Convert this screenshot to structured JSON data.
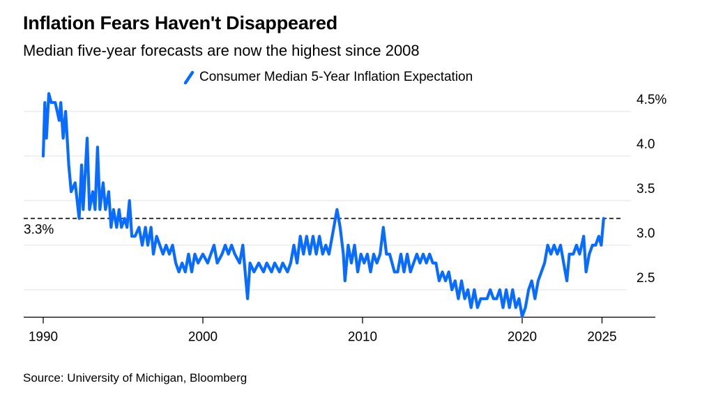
{
  "title": "Inflation Fears Haven't Disappeared",
  "subtitle": "Median five-year forecasts are now the highest since 2008",
  "source": "Source: University of Michigan, Bloomberg",
  "chart_data": {
    "type": "line",
    "title": "Inflation Fears Haven't Disappeared",
    "subtitle": "Median five-year forecasts are now the highest since 2008",
    "xlabel": "",
    "ylabel": "",
    "xlim": [
      1989.2,
      2028.5
    ],
    "ylim": [
      2.2,
      4.7
    ],
    "grid": true,
    "legend": "top-center",
    "y_axis_side": "right",
    "x_ticks": [
      {
        "value": 1990,
        "label": "1990"
      },
      {
        "value": 2000,
        "label": "2000"
      },
      {
        "value": 2010,
        "label": "2010"
      },
      {
        "value": 2020,
        "label": "2020"
      },
      {
        "value": 2025,
        "label": "2025"
      }
    ],
    "y_ticks": [
      {
        "value": 2.5,
        "label": "2.5"
      },
      {
        "value": 3.0,
        "label": "3.0"
      },
      {
        "value": 3.5,
        "label": "3.5"
      },
      {
        "value": 4.0,
        "label": "4.0"
      },
      {
        "value": 4.5,
        "label": "4.5%"
      }
    ],
    "reference_line": {
      "value": 3.3,
      "label": "3.3%",
      "style": "dashed"
    },
    "series": [
      {
        "name": "Consumer Median 5-Year Inflation Expectation",
        "color": "#0a6cff",
        "points": [
          [
            1990.0,
            4.0
          ],
          [
            1990.1,
            4.6
          ],
          [
            1990.2,
            4.2
          ],
          [
            1990.35,
            4.7
          ],
          [
            1990.5,
            4.6
          ],
          [
            1990.75,
            4.6
          ],
          [
            1991.0,
            4.4
          ],
          [
            1991.1,
            4.6
          ],
          [
            1991.25,
            4.2
          ],
          [
            1991.4,
            4.5
          ],
          [
            1991.6,
            3.9
          ],
          [
            1991.75,
            3.6
          ],
          [
            1992.0,
            3.7
          ],
          [
            1992.25,
            3.3
          ],
          [
            1992.4,
            3.9
          ],
          [
            1992.5,
            3.4
          ],
          [
            1992.75,
            4.2
          ],
          [
            1992.9,
            3.4
          ],
          [
            1993.1,
            3.6
          ],
          [
            1993.25,
            3.4
          ],
          [
            1993.4,
            4.1
          ],
          [
            1993.55,
            3.4
          ],
          [
            1993.75,
            3.7
          ],
          [
            1993.9,
            3.4
          ],
          [
            1994.1,
            3.6
          ],
          [
            1994.25,
            3.2
          ],
          [
            1994.4,
            3.4
          ],
          [
            1994.6,
            3.2
          ],
          [
            1994.75,
            3.4
          ],
          [
            1994.9,
            3.2
          ],
          [
            1995.1,
            3.3
          ],
          [
            1995.25,
            3.2
          ],
          [
            1995.4,
            3.5
          ],
          [
            1995.55,
            3.1
          ],
          [
            1995.75,
            3.1
          ],
          [
            1996.0,
            3.2
          ],
          [
            1996.2,
            3.0
          ],
          [
            1996.4,
            3.2
          ],
          [
            1996.55,
            3.0
          ],
          [
            1996.75,
            3.2
          ],
          [
            1996.9,
            2.9
          ],
          [
            1997.1,
            3.1
          ],
          [
            1997.3,
            3.0
          ],
          [
            1997.5,
            2.9
          ],
          [
            1997.7,
            3.0
          ],
          [
            1997.9,
            2.9
          ],
          [
            1998.1,
            3.0
          ],
          [
            1998.3,
            2.8
          ],
          [
            1998.5,
            2.7
          ],
          [
            1998.7,
            2.8
          ],
          [
            1998.9,
            2.7
          ],
          [
            1999.1,
            2.9
          ],
          [
            1999.3,
            2.7
          ],
          [
            1999.5,
            2.9
          ],
          [
            1999.7,
            2.8
          ],
          [
            2000.0,
            2.9
          ],
          [
            2000.3,
            2.8
          ],
          [
            2000.5,
            2.9
          ],
          [
            2000.7,
            3.0
          ],
          [
            2000.9,
            2.8
          ],
          [
            2001.2,
            2.9
          ],
          [
            2001.4,
            3.0
          ],
          [
            2001.6,
            2.9
          ],
          [
            2001.8,
            3.0
          ],
          [
            2002.0,
            2.9
          ],
          [
            2002.3,
            2.8
          ],
          [
            2002.5,
            3.0
          ],
          [
            2002.7,
            2.6
          ],
          [
            2002.8,
            2.4
          ],
          [
            2002.95,
            2.8
          ],
          [
            2003.2,
            2.7
          ],
          [
            2003.5,
            2.8
          ],
          [
            2003.8,
            2.7
          ],
          [
            2004.0,
            2.8
          ],
          [
            2004.3,
            2.7
          ],
          [
            2004.5,
            2.8
          ],
          [
            2004.8,
            2.7
          ],
          [
            2005.0,
            2.8
          ],
          [
            2005.3,
            2.7
          ],
          [
            2005.5,
            2.8
          ],
          [
            2005.7,
            3.0
          ],
          [
            2005.9,
            2.8
          ],
          [
            2006.1,
            3.1
          ],
          [
            2006.3,
            2.9
          ],
          [
            2006.5,
            3.1
          ],
          [
            2006.7,
            2.9
          ],
          [
            2006.9,
            3.1
          ],
          [
            2007.1,
            2.9
          ],
          [
            2007.3,
            3.1
          ],
          [
            2007.5,
            2.9
          ],
          [
            2007.7,
            3.0
          ],
          [
            2007.9,
            2.9
          ],
          [
            2008.1,
            3.1
          ],
          [
            2008.4,
            3.4
          ],
          [
            2008.6,
            3.2
          ],
          [
            2008.8,
            2.9
          ],
          [
            2008.9,
            2.6
          ],
          [
            2009.1,
            3.0
          ],
          [
            2009.3,
            2.8
          ],
          [
            2009.5,
            3.0
          ],
          [
            2009.7,
            2.7
          ],
          [
            2009.9,
            2.9
          ],
          [
            2010.1,
            2.8
          ],
          [
            2010.3,
            2.9
          ],
          [
            2010.5,
            2.7
          ],
          [
            2010.7,
            2.9
          ],
          [
            2010.9,
            2.8
          ],
          [
            2011.1,
            2.9
          ],
          [
            2011.3,
            3.2
          ],
          [
            2011.5,
            2.9
          ],
          [
            2011.7,
            2.9
          ],
          [
            2012.0,
            2.7
          ],
          [
            2012.2,
            2.7
          ],
          [
            2012.4,
            2.9
          ],
          [
            2012.6,
            2.7
          ],
          [
            2012.8,
            2.9
          ],
          [
            2013.0,
            2.7
          ],
          [
            2013.2,
            2.8
          ],
          [
            2013.4,
            2.9
          ],
          [
            2013.6,
            2.8
          ],
          [
            2013.8,
            2.9
          ],
          [
            2014.0,
            2.8
          ],
          [
            2014.2,
            2.9
          ],
          [
            2014.4,
            2.8
          ],
          [
            2014.6,
            2.8
          ],
          [
            2014.8,
            2.6
          ],
          [
            2015.0,
            2.7
          ],
          [
            2015.2,
            2.6
          ],
          [
            2015.4,
            2.7
          ],
          [
            2015.6,
            2.5
          ],
          [
            2015.8,
            2.6
          ],
          [
            2016.0,
            2.4
          ],
          [
            2016.2,
            2.6
          ],
          [
            2016.4,
            2.4
          ],
          [
            2016.6,
            2.5
          ],
          [
            2016.8,
            2.3
          ],
          [
            2017.0,
            2.5
          ],
          [
            2017.2,
            2.3
          ],
          [
            2017.4,
            2.4
          ],
          [
            2017.6,
            2.4
          ],
          [
            2017.8,
            2.4
          ],
          [
            2018.0,
            2.5
          ],
          [
            2018.2,
            2.4
          ],
          [
            2018.4,
            2.4
          ],
          [
            2018.6,
            2.5
          ],
          [
            2018.8,
            2.3
          ],
          [
            2019.0,
            2.5
          ],
          [
            2019.2,
            2.3
          ],
          [
            2019.4,
            2.5
          ],
          [
            2019.6,
            2.3
          ],
          [
            2019.8,
            2.4
          ],
          [
            2020.0,
            2.2
          ],
          [
            2020.2,
            2.3
          ],
          [
            2020.4,
            2.5
          ],
          [
            2020.6,
            2.6
          ],
          [
            2020.8,
            2.4
          ],
          [
            2021.0,
            2.6
          ],
          [
            2021.2,
            2.7
          ],
          [
            2021.4,
            2.8
          ],
          [
            2021.6,
            3.0
          ],
          [
            2021.8,
            2.9
          ],
          [
            2022.0,
            3.0
          ],
          [
            2022.2,
            2.9
          ],
          [
            2022.4,
            3.0
          ],
          [
            2022.6,
            2.8
          ],
          [
            2022.8,
            2.6
          ],
          [
            2022.95,
            2.9
          ],
          [
            2023.2,
            2.9
          ],
          [
            2023.4,
            3.0
          ],
          [
            2023.6,
            2.9
          ],
          [
            2023.85,
            3.1
          ],
          [
            2024.0,
            2.7
          ],
          [
            2024.2,
            2.9
          ],
          [
            2024.4,
            3.0
          ],
          [
            2024.6,
            3.0
          ],
          [
            2024.8,
            3.1
          ],
          [
            2024.95,
            3.0
          ],
          [
            2025.1,
            3.3
          ]
        ]
      }
    ]
  }
}
